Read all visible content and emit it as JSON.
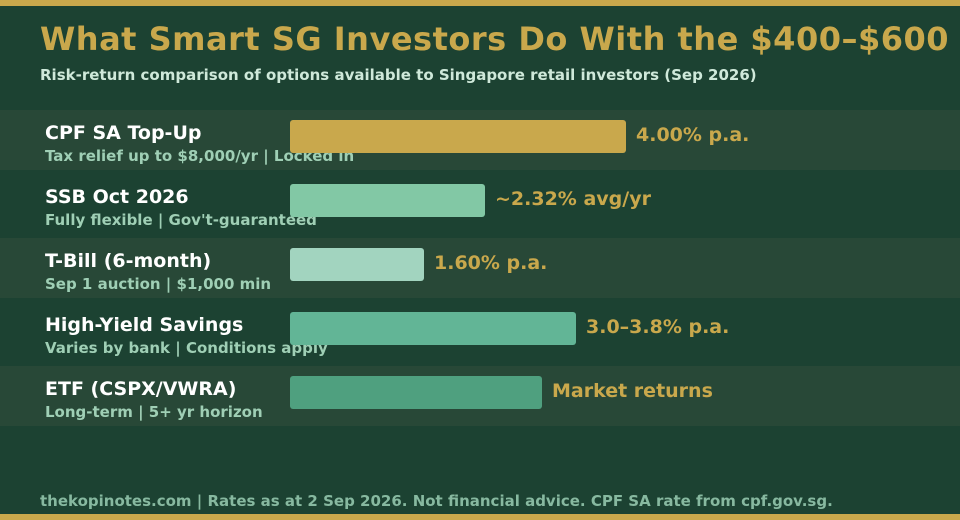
{
  "title": "What Smart SG Investors Do With the $400–$600",
  "subtitle": "Risk-return comparison of options available to Singapore retail investors (Sep 2026)",
  "footer": "thekopinotes.com | Rates as at 2 Sep 2026. Not financial advice. CPF SA rate from cpf.gov.sg.",
  "colors": {
    "background": "#1c4232",
    "accent": "#c9a84c"
  },
  "chart_data": {
    "type": "bar",
    "orientation": "horizontal",
    "categories": [
      "CPF SA Top-Up",
      "SSB Oct 2026",
      "T-Bill (6-month)",
      "High-Yield Savings",
      "ETF (CSPX/VWRA)"
    ],
    "notes": [
      "Tax relief up to $8,000/yr | Locked in",
      "Fully flexible | Gov't-guaranteed",
      "Sep 1 auction | $1,000 min",
      "Varies by bank | Conditions apply",
      "Long-term | 5+ yr horizon"
    ],
    "values": [
      4.0,
      2.32,
      1.6,
      3.4,
      3.0
    ],
    "value_labels": [
      "4.00% p.a.",
      "~2.32% avg/yr",
      "1.60% p.a.",
      "3.0–3.8% p.a.",
      "Market returns"
    ],
    "bar_colors": [
      "#c9a84c",
      "#82c8a5",
      "#a2d4bf",
      "#62b596",
      "#4fa07f"
    ],
    "xlim": [
      0,
      4.0
    ],
    "grid": false
  }
}
